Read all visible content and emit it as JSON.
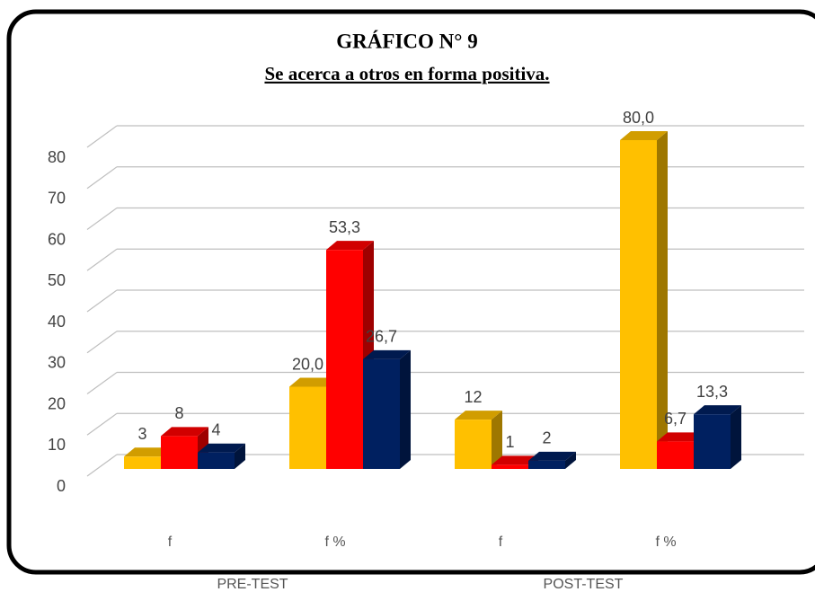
{
  "chart_data": {
    "type": "bar3d",
    "title": "GRÁFICO N° 9",
    "subtitle": "Se acerca a otros en forma positiva.",
    "categories": [
      "f",
      "f %",
      "f",
      "f %"
    ],
    "groups": [
      "PRE-TEST",
      "POST-TEST"
    ],
    "series": [
      {
        "color": "#FFC000",
        "values": [
          3,
          20,
          12,
          80
        ],
        "value_labels": [
          "3",
          "20,0",
          "12",
          "80,0"
        ]
      },
      {
        "color": "#FF0000",
        "values": [
          8,
          53.3,
          1,
          6.7
        ],
        "value_labels": [
          "8",
          "53,3",
          "1",
          "6,7"
        ]
      },
      {
        "color": "#002060",
        "values": [
          4,
          26.7,
          2,
          13.3
        ],
        "value_labels": [
          "4",
          "26,7",
          "2",
          "13,3"
        ]
      }
    ],
    "ylim": [
      0,
      80
    ],
    "yticks": [
      0,
      10,
      20,
      30,
      40,
      50,
      60,
      70,
      80
    ],
    "grid": true
  }
}
